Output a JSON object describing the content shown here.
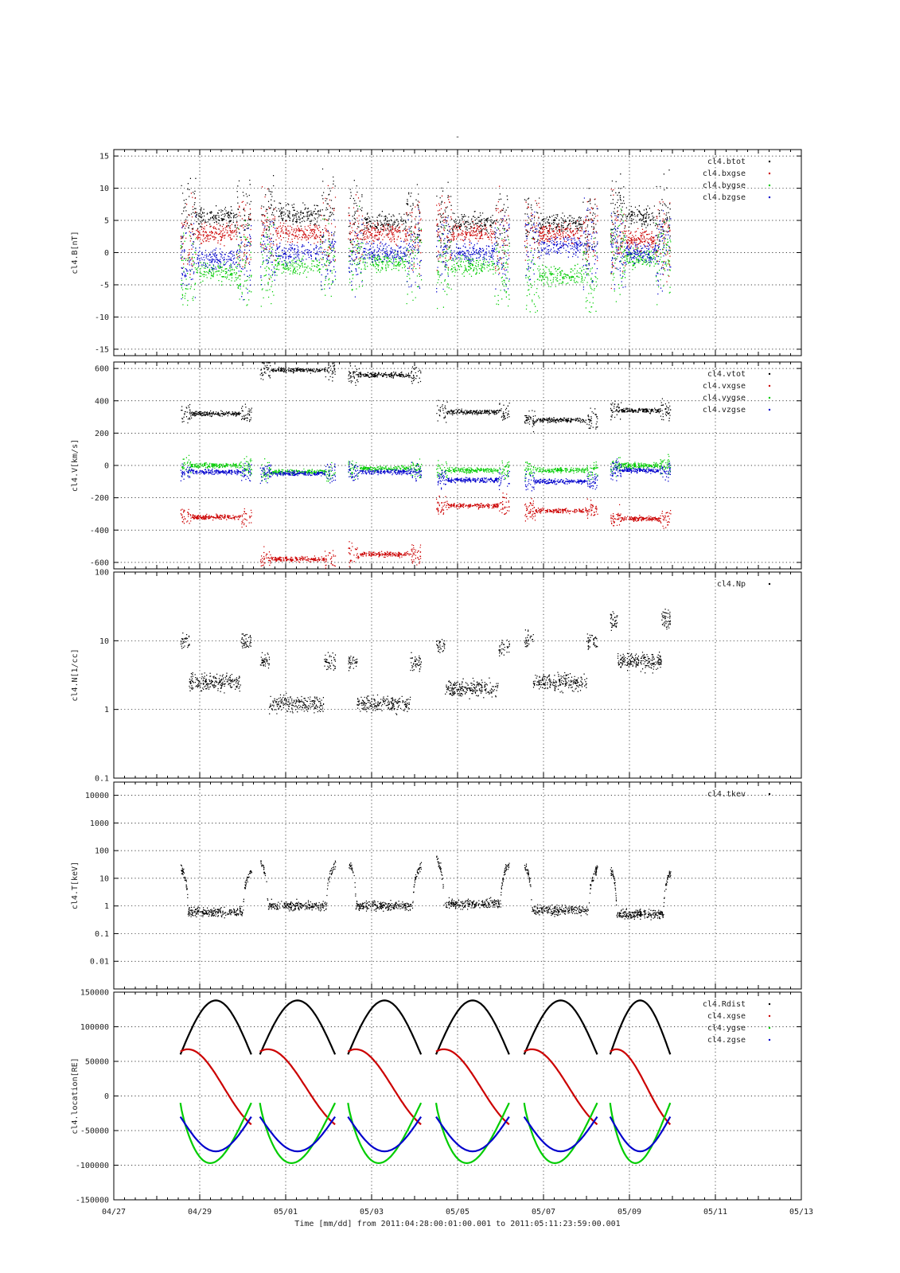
{
  "figure": {
    "top_mark": "-",
    "x_axis": {
      "ticks": [
        "04/27",
        "04/29",
        "05/01",
        "05/03",
        "05/05",
        "05/07",
        "05/09",
        "05/11",
        "05/13"
      ],
      "title": "Time [mm/dd]  from 2011:04:28:00:01:00.001  to  2011:05:11:23:59:00.001"
    }
  },
  "colors": {
    "black": "#000000",
    "red": "#cc0000",
    "green": "#00cc00",
    "blue": "#0000cc"
  },
  "chart_data": [
    {
      "type": "scatter",
      "ylabel": "cl4.B[nT]",
      "yscale": "linear",
      "ylim": [
        -16,
        16
      ],
      "y_ticks": [
        -15,
        -10,
        -5,
        0,
        5,
        10,
        15
      ],
      "y_tick_labels": [
        "-15",
        "-10",
        "-5",
        "0",
        "5",
        "10",
        "15"
      ],
      "x_range_days": [
        "04/27",
        "05/13"
      ],
      "segments": [
        [
          "04/28 07:00",
          "04/29 23:30"
        ],
        [
          "04/30 07:00",
          "05/01 23:30"
        ],
        [
          "05/02 07:00",
          "05/03 23:30"
        ],
        [
          "05/04 07:00",
          "05/05 23:30"
        ],
        [
          "05/06 07:00",
          "05/07 23:30"
        ],
        [
          "05/08 07:00",
          "05/09 23:30"
        ]
      ],
      "series": [
        {
          "name": "cl4.btot",
          "color": "black",
          "typical": [
            5.5,
            6.0,
            4.5,
            4.5,
            4.5,
            5.5
          ]
        },
        {
          "name": "cl4.bxgse",
          "color": "red",
          "typical": [
            3.0,
            3.0,
            3.0,
            3.0,
            3.0,
            2.0
          ]
        },
        {
          "name": "cl4.bygse",
          "color": "green",
          "typical": [
            -3.0,
            -2.0,
            -1.5,
            -2.0,
            -3.5,
            -1.0
          ]
        },
        {
          "name": "cl4.bzgse",
          "color": "blue",
          "typical": [
            -1.0,
            0.0,
            0.0,
            0.0,
            1.0,
            0.0
          ]
        }
      ]
    },
    {
      "type": "scatter",
      "ylabel": "cl4.V[km/s]",
      "yscale": "linear",
      "ylim": [
        -640,
        640
      ],
      "y_ticks": [
        -600,
        -400,
        -200,
        0,
        200,
        400,
        600
      ],
      "y_tick_labels": [
        "-600",
        "-400",
        "-200",
        "0",
        "200",
        "400",
        "600"
      ],
      "series": [
        {
          "name": "cl4.vtot",
          "color": "black",
          "typical": [
            320,
            590,
            560,
            330,
            280,
            340
          ]
        },
        {
          "name": "cl4.vxgse",
          "color": "red",
          "typical": [
            -320,
            -580,
            -550,
            -250,
            -280,
            -330
          ]
        },
        {
          "name": "cl4.vygse",
          "color": "green",
          "typical": [
            0,
            -40,
            -20,
            -30,
            -30,
            0
          ]
        },
        {
          "name": "cl4.vzgse",
          "color": "blue",
          "typical": [
            -40,
            -50,
            -40,
            -90,
            -100,
            -30
          ]
        }
      ]
    },
    {
      "type": "scatter",
      "ylabel": "cl4.N[1/cc]",
      "yscale": "log",
      "ylim": [
        0.1,
        100
      ],
      "y_ticks": [
        0.1,
        1,
        10,
        100
      ],
      "y_tick_labels": [
        "0.1",
        "1",
        "10",
        "100"
      ],
      "series": [
        {
          "name": "cl4.Np",
          "color": "black",
          "typical": [
            2.5,
            1.2,
            1.2,
            2.0,
            2.5,
            5.0
          ]
        }
      ]
    },
    {
      "type": "scatter",
      "ylabel": "cl4.T[keV]",
      "yscale": "log",
      "ylim": [
        0.001,
        30000
      ],
      "y_ticks": [
        0.01,
        0.1,
        1,
        10,
        100,
        1000,
        10000
      ],
      "y_tick_labels": [
        "0.01",
        "0.1",
        "1",
        "10",
        "100",
        "1000",
        "10000"
      ],
      "series": [
        {
          "name": "cl4.tkev",
          "color": "black",
          "typical": [
            0.6,
            1.0,
            1.0,
            1.2,
            0.7,
            0.5
          ]
        }
      ]
    },
    {
      "type": "scatter",
      "ylabel": "cl4.location[RE]",
      "yscale": "linear",
      "ylim": [
        -150000,
        150000
      ],
      "y_ticks": [
        -150000,
        -100000,
        -50000,
        0,
        50000,
        100000
      ],
      "y_tick_labels": [
        "-150000",
        "-100000",
        "-50000",
        "0",
        "50000",
        "100000"
      ],
      "top_tick_label": "150000",
      "series": [
        {
          "name": "cl4.Rdist",
          "color": "black",
          "peak": 138000
        },
        {
          "name": "cl4.xgse",
          "color": "red",
          "peak": 72000
        },
        {
          "name": "cl4.ygse",
          "color": "green",
          "trough": -97000
        },
        {
          "name": "cl4.zgse",
          "color": "blue",
          "trough": -80000
        }
      ]
    }
  ]
}
